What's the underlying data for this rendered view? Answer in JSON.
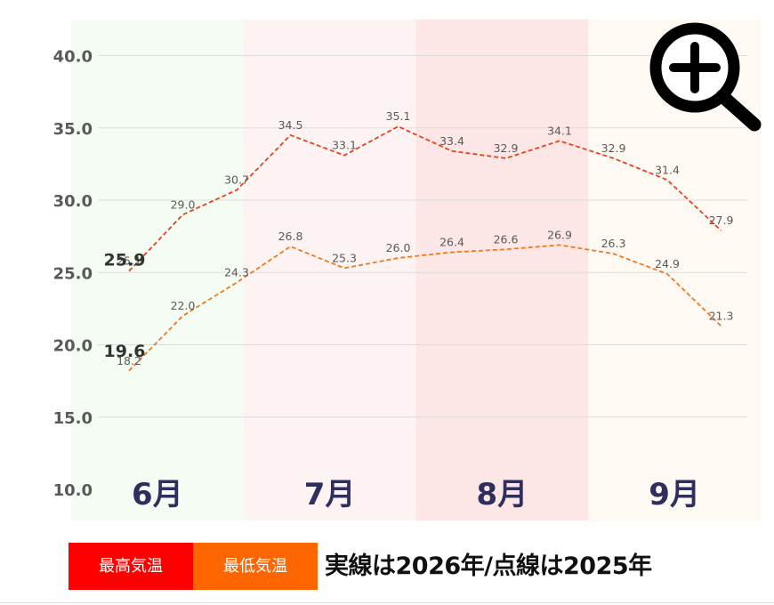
{
  "chart_data": {
    "type": "line",
    "x": [
      1,
      2,
      3,
      4,
      5,
      6,
      7,
      8,
      9,
      10,
      11,
      12
    ],
    "ylim": [
      10,
      42
    ],
    "yticks": [
      "10.0",
      "15.0",
      "20.0",
      "25.0",
      "30.0",
      "35.0",
      "40.0"
    ],
    "months": [
      {
        "label": "6月",
        "color": "#f4fcf4"
      },
      {
        "label": "7月",
        "color": "#fdf3f3"
      },
      {
        "label": "8月",
        "color": "#fce6e6"
      },
      {
        "label": "9月",
        "color": "#fff9f3"
      }
    ],
    "series": [
      {
        "key": "high_2025",
        "color": "#e8421c",
        "dashed": true,
        "values": [
          25.1,
          29.0,
          30.7,
          34.5,
          33.1,
          35.1,
          33.4,
          32.9,
          34.1,
          32.9,
          31.4,
          27.9
        ],
        "labels": [
          "25.1",
          "29.0",
          "30.7",
          "34.5",
          "33.1",
          "35.1",
          "33.4",
          "32.9",
          "34.1",
          "32.9",
          "31.4",
          "27.9"
        ]
      },
      {
        "key": "low_2025",
        "color": "#f07820",
        "dashed": true,
        "values": [
          18.2,
          22.0,
          24.3,
          26.8,
          25.3,
          26.0,
          26.4,
          26.6,
          26.9,
          26.3,
          24.9,
          21.3
        ],
        "labels": [
          "18.2",
          "22.0",
          "24.3",
          "26.8",
          "25.3",
          "26.0",
          "26.4",
          "26.6",
          "26.9",
          "26.3",
          "24.9",
          "21.3"
        ]
      }
    ],
    "current_labels": [
      {
        "x": 1,
        "y": 25.9,
        "text": "25.9"
      },
      {
        "x": 1,
        "y": 19.6,
        "text": "19.6"
      }
    ]
  },
  "legend": {
    "high_label": "最高気温",
    "high_color": "#ff0000",
    "low_label": "最低気温",
    "low_color": "#ff6600",
    "note": "実線は2026年/点線は2025年"
  },
  "zoom_icon": "zoom-in-icon"
}
